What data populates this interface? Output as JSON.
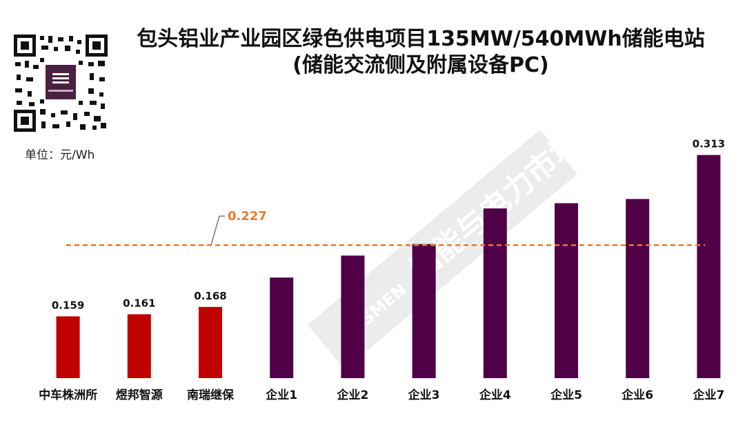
{
  "chart_data": {
    "type": "bar",
    "title": "包头铝业产业园区绿色供电项目135MW/540MWh储能电站",
    "subtitle": "(储能交流侧及附属设备PC)",
    "unit_label": "单位：元/Wh",
    "categories": [
      "中车株洲所",
      "煜邦智源",
      "南瑞继保",
      "企业1",
      "企业2",
      "企业3",
      "企业4",
      "企业5",
      "企业6",
      "企业7"
    ],
    "values": [
      0.159,
      0.161,
      0.168,
      0.196,
      0.217,
      0.228,
      0.262,
      0.267,
      0.271,
      0.313
    ],
    "value_labels": [
      "0.159",
      "0.161",
      "0.168",
      "",
      "",
      "",
      "",
      "",
      "",
      "0.313"
    ],
    "bar_colors": [
      "#C00000",
      "#C00000",
      "#C00000",
      "#4F0047",
      "#4F0047",
      "#4F0047",
      "#4F0047",
      "#4F0047",
      "#4F0047",
      "#4F0047"
    ],
    "average_line": {
      "value": 0.227,
      "label": "0.227",
      "color": "#E97A2B"
    },
    "ylim": [
      0.1,
      0.32
    ],
    "xlabel": "",
    "ylabel": "",
    "grid": false
  },
  "watermark": {
    "text": "储能与电力市场",
    "logo_text": "ESSMEN"
  }
}
